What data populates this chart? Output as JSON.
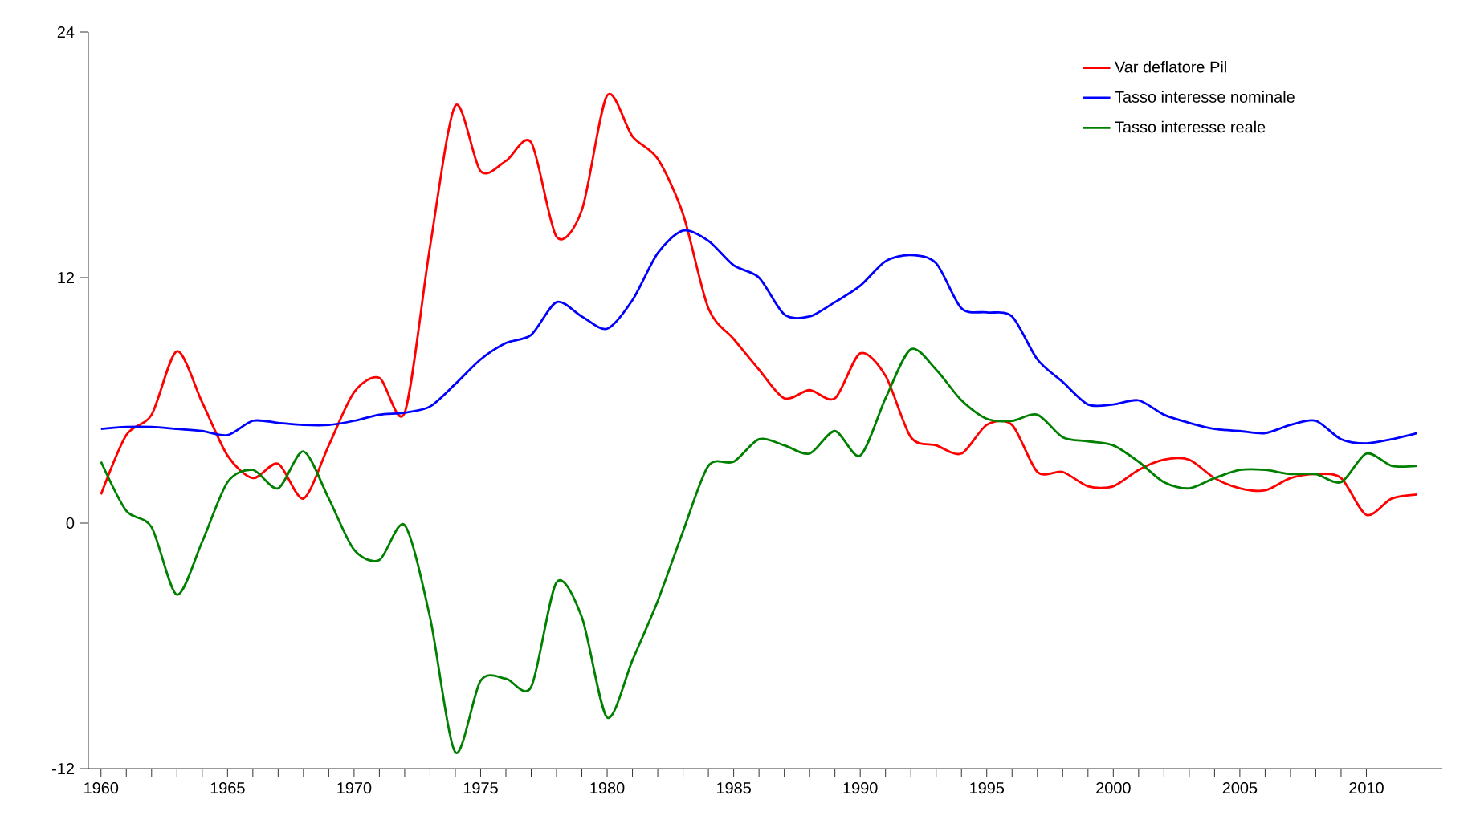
{
  "chart_data": {
    "type": "line",
    "x": [
      1960,
      1961,
      1962,
      1963,
      1964,
      1965,
      1966,
      1967,
      1968,
      1969,
      1970,
      1971,
      1972,
      1973,
      1974,
      1975,
      1976,
      1977,
      1978,
      1979,
      1980,
      1981,
      1982,
      1983,
      1984,
      1985,
      1986,
      1987,
      1988,
      1989,
      1990,
      1991,
      1992,
      1993,
      1994,
      1995,
      1996,
      1997,
      1998,
      1999,
      2000,
      2001,
      2002,
      2003,
      2004,
      2005,
      2006,
      2007,
      2008,
      2009,
      2010,
      2011,
      2012
    ],
    "series": [
      {
        "name": "Var deflatore Pil",
        "color": "#ff0000",
        "values": [
          1.4,
          4.3,
          5.3,
          8.4,
          5.9,
          3.3,
          2.2,
          2.9,
          1.2,
          3.8,
          6.4,
          7.1,
          5.4,
          13.5,
          20.4,
          17.2,
          17.7,
          18.6,
          14.0,
          15.3,
          20.9,
          18.9,
          17.8,
          15.1,
          10.5,
          9.0,
          7.5,
          6.1,
          6.5,
          6.1,
          8.3,
          7.2,
          4.2,
          3.8,
          3.4,
          4.8,
          4.8,
          2.5,
          2.5,
          1.8,
          1.8,
          2.6,
          3.1,
          3.1,
          2.2,
          1.7,
          1.6,
          2.2,
          2.4,
          2.2,
          0.4,
          1.2,
          1.4
        ]
      },
      {
        "name": "Tasso interesse nominale",
        "color": "#0000ff",
        "values": [
          4.6,
          4.7,
          4.7,
          4.6,
          4.5,
          4.3,
          5.0,
          4.9,
          4.8,
          4.8,
          5.0,
          5.3,
          5.4,
          5.7,
          6.8,
          8.0,
          8.8,
          9.2,
          10.8,
          10.1,
          9.5,
          10.9,
          13.2,
          14.3,
          13.8,
          12.6,
          12.0,
          10.2,
          10.1,
          10.8,
          11.6,
          12.8,
          13.1,
          12.7,
          10.5,
          10.3,
          10.1,
          8.0,
          6.9,
          5.8,
          5.8,
          6.0,
          5.3,
          4.9,
          4.6,
          4.5,
          4.4,
          4.8,
          5.0,
          4.1,
          3.9,
          4.1,
          4.4
        ]
      },
      {
        "name": "Tasso interesse reale",
        "color": "#008000",
        "values": [
          3.0,
          0.6,
          -0.2,
          -3.5,
          -0.9,
          2.0,
          2.6,
          1.7,
          3.5,
          1.2,
          -1.3,
          -1.8,
          -0.1,
          -4.6,
          -11.2,
          -7.7,
          -7.6,
          -8.0,
          -2.9,
          -4.6,
          -9.5,
          -6.7,
          -3.8,
          -0.4,
          2.8,
          3.0,
          4.1,
          3.8,
          3.4,
          4.5,
          3.3,
          6.1,
          8.5,
          7.5,
          6.0,
          5.1,
          5.0,
          5.3,
          4.2,
          4.0,
          3.8,
          3.0,
          2.0,
          1.7,
          2.2,
          2.6,
          2.6,
          2.4,
          2.4,
          2.0,
          3.4,
          2.8,
          2.8
        ]
      }
    ],
    "xlim": [
      1959.5,
      2013
    ],
    "xticks": [
      1960,
      1965,
      1970,
      1975,
      1980,
      1985,
      1990,
      1995,
      2000,
      2005,
      2010
    ],
    "ylim": [
      -12,
      24
    ],
    "yticks": [
      -12,
      0,
      12,
      24
    ],
    "grid": false,
    "legend": "top right",
    "marker": "none",
    "line_style": "solid"
  }
}
